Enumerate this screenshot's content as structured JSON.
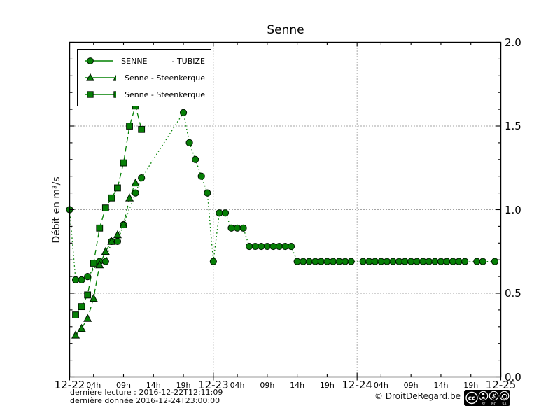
{
  "title": "Senne",
  "ylabel": "Débit en m³/s",
  "legend": {
    "entries": [
      {
        "label": "SENNE          - TUBIZE",
        "marker": "circle"
      },
      {
        "label": "Senne - Steenkerque",
        "marker": "triangle"
      },
      {
        "label": "Senne - Steenkerque",
        "marker": "square"
      }
    ]
  },
  "footer": {
    "last_reading": "dernière lecture : 2016-12-22T12:11:09",
    "last_data": "dernière donnée  2016-12-24T23:00:00",
    "copyright": "© DroitDeRegard.be",
    "license": {
      "logo": "cc",
      "labels": [
        "BY",
        "NC",
        "SA"
      ]
    }
  },
  "colors": {
    "line": "#008000",
    "marker_fill": "#067f06",
    "marker_edge": "#001500",
    "grid": "#4a4a4a",
    "axis": "#000000",
    "badge_bg": "#000000",
    "badge_fg": "#ffffff"
  },
  "chart_data": {
    "type": "line",
    "title": "Senne",
    "ylabel": "Débit en m³/s",
    "ylim": [
      0.0,
      2.0
    ],
    "yticks": [
      0.0,
      0.5,
      1.0,
      1.5,
      2.0
    ],
    "ytick_labels": [
      "0.0",
      "0.5",
      "1.0",
      "1.5",
      "2.0"
    ],
    "grid_hlines": [
      0.5,
      1.0,
      1.5
    ],
    "grid_vlines_hours": [
      24,
      48
    ],
    "x_unit": "hours from 12-22 00:00",
    "xlim": [
      0,
      72
    ],
    "day_labels": [
      {
        "label": "12-22",
        "hour": 0
      },
      {
        "label": "12-23",
        "hour": 24
      },
      {
        "label": "12-24",
        "hour": 48
      },
      {
        "label": "12-25",
        "hour": 72
      }
    ],
    "hour_tick_labels": [
      "04h",
      "09h",
      "14h",
      "19h"
    ],
    "hour_tick_offsets": [
      4,
      9,
      14,
      19
    ],
    "legend_position": "upper left",
    "grid": true,
    "series": [
      {
        "name": "SENNE          - TUBIZE",
        "marker": "circle",
        "linestyle": "dotted",
        "points": [
          [
            0,
            1.0
          ],
          [
            1,
            0.58
          ],
          [
            2,
            0.58
          ],
          [
            3,
            0.6
          ],
          [
            5,
            0.69
          ],
          [
            6,
            0.69
          ],
          [
            7,
            0.81
          ],
          [
            8,
            0.81
          ],
          [
            9,
            0.91
          ],
          [
            11,
            1.1
          ],
          [
            12,
            1.19
          ],
          [
            19,
            1.58
          ],
          [
            20,
            1.4
          ],
          [
            21,
            1.3
          ],
          [
            22,
            1.2
          ],
          [
            23,
            1.1
          ],
          [
            24,
            0.69
          ],
          [
            25,
            0.98
          ],
          [
            26,
            0.98
          ],
          [
            27,
            0.89
          ],
          [
            28,
            0.89
          ],
          [
            29,
            0.89
          ],
          [
            30,
            0.78
          ],
          [
            31,
            0.78
          ],
          [
            32,
            0.78
          ],
          [
            33,
            0.78
          ],
          [
            34,
            0.78
          ],
          [
            35,
            0.78
          ],
          [
            36,
            0.78
          ],
          [
            37,
            0.78
          ],
          [
            38,
            0.69
          ],
          [
            39,
            0.69
          ],
          [
            40,
            0.69
          ],
          [
            41,
            0.69
          ],
          [
            42,
            0.69
          ],
          [
            43,
            0.69
          ],
          [
            44,
            0.69
          ],
          [
            45,
            0.69
          ],
          [
            46,
            0.69
          ],
          [
            47,
            0.69
          ],
          [
            49,
            0.69
          ],
          [
            50,
            0.69
          ],
          [
            51,
            0.69
          ],
          [
            52,
            0.69
          ],
          [
            53,
            0.69
          ],
          [
            54,
            0.69
          ],
          [
            55,
            0.69
          ],
          [
            56,
            0.69
          ],
          [
            57,
            0.69
          ],
          [
            58,
            0.69
          ],
          [
            59,
            0.69
          ],
          [
            60,
            0.69
          ],
          [
            61,
            0.69
          ],
          [
            62,
            0.69
          ],
          [
            63,
            0.69
          ],
          [
            64,
            0.69
          ],
          [
            65,
            0.69
          ],
          [
            66,
            0.69
          ],
          [
            68,
            0.69
          ],
          [
            69,
            0.69
          ],
          [
            71,
            0.69
          ]
        ]
      },
      {
        "name": "Senne - Steenkerque",
        "marker": "triangle",
        "linestyle": "dashed",
        "points": [
          [
            1,
            0.25
          ],
          [
            2,
            0.29
          ],
          [
            3,
            0.35
          ],
          [
            4,
            0.47
          ],
          [
            5,
            0.67
          ],
          [
            6,
            0.75
          ],
          [
            7,
            0.81
          ],
          [
            8,
            0.85
          ],
          [
            9,
            0.91
          ],
          [
            10,
            1.07
          ],
          [
            11,
            1.16
          ]
        ]
      },
      {
        "name": "Senne - Steenkerque",
        "marker": "square",
        "linestyle": "dashed",
        "points": [
          [
            1,
            0.37
          ],
          [
            2,
            0.42
          ],
          [
            3,
            0.49
          ],
          [
            4,
            0.68
          ],
          [
            5,
            0.89
          ],
          [
            6,
            1.01
          ],
          [
            7,
            1.07
          ],
          [
            8,
            1.13
          ],
          [
            9,
            1.28
          ],
          [
            10,
            1.5
          ],
          [
            11,
            1.62
          ],
          [
            12,
            1.48
          ]
        ]
      }
    ]
  }
}
